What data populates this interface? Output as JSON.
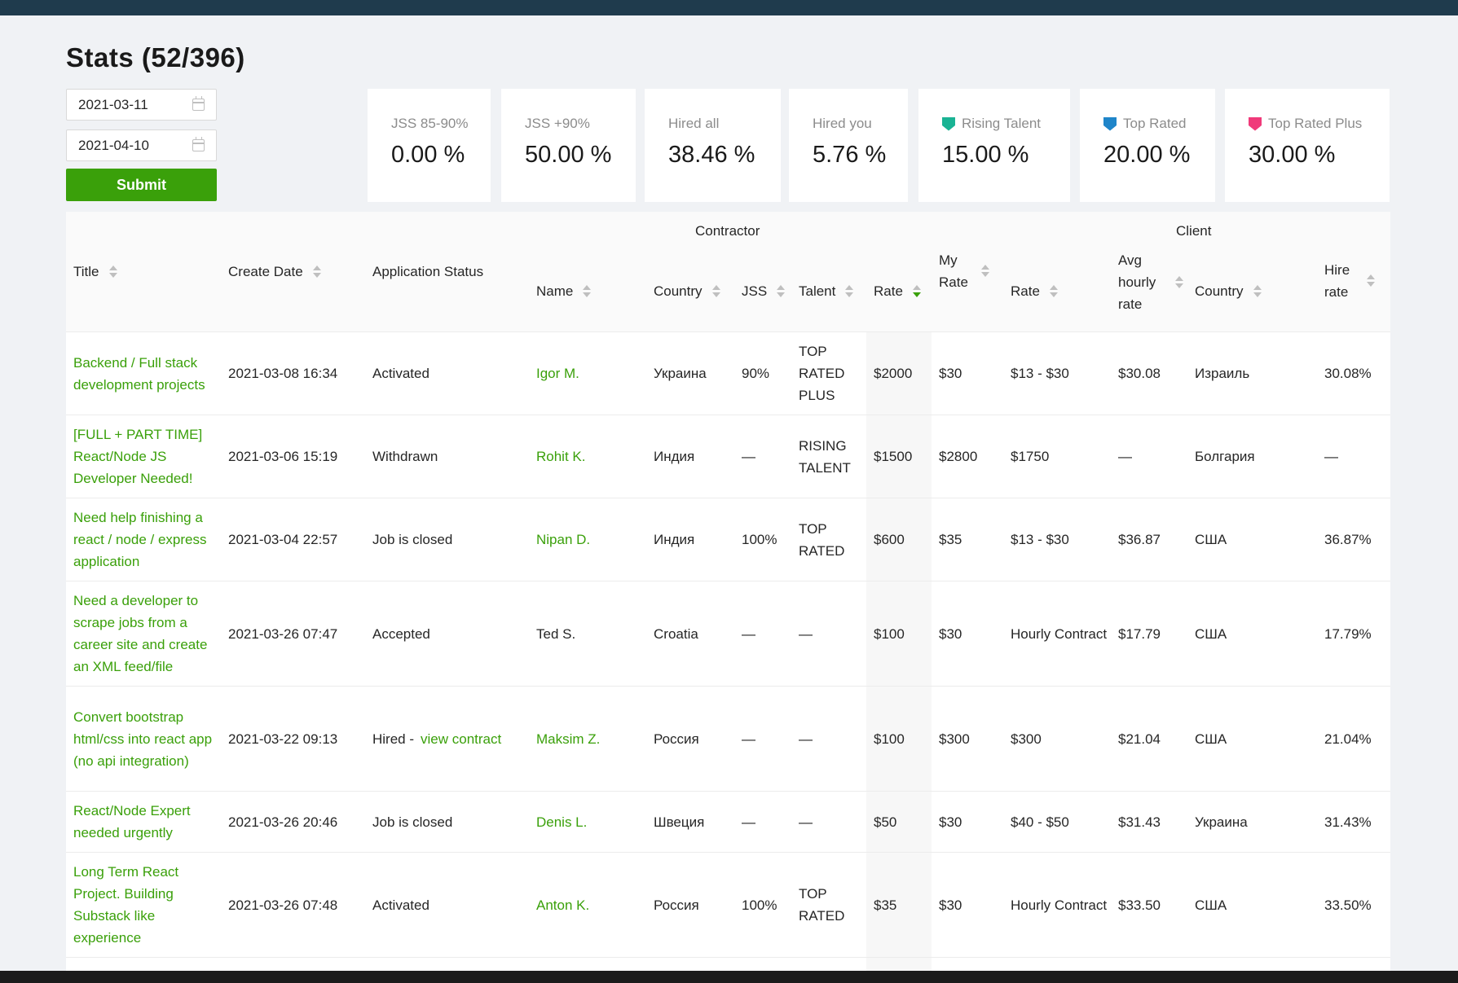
{
  "page": {
    "title": "Stats (52/396)"
  },
  "filters": {
    "date_from": "2021-03-11",
    "date_to": "2021-04-10",
    "submit_label": "Submit"
  },
  "stats": [
    {
      "label": "JSS 85-90%",
      "value": "0.00 %",
      "badge": null
    },
    {
      "label": "JSS +90%",
      "value": "50.00 %",
      "badge": null
    },
    {
      "label": "Hired all",
      "value": "38.46 %",
      "badge": null
    },
    {
      "label": "Hired you",
      "value": "5.76 %",
      "badge": null
    },
    {
      "label": "Rising Talent",
      "value": "15.00 %",
      "badge": "#1ab394"
    },
    {
      "label": "Top Rated",
      "value": "20.00 %",
      "badge": "#1f85c9"
    },
    {
      "label": "Top Rated Plus",
      "value": "30.00 %",
      "badge": "#f03a7a"
    }
  ],
  "table": {
    "group_contractor": "Contractor",
    "group_client": "Client",
    "headers": {
      "title": "Title",
      "create_date": "Create Date",
      "application_status": "Application Status",
      "name": "Name",
      "country": "Country",
      "jss": "JSS",
      "talent": "Talent",
      "rate": "Rate",
      "my_rate": "My Rate",
      "client_rate": "Rate",
      "avg_hourly_rate": "Avg hourly rate",
      "client_country": "Country",
      "hire_rate": "Hire rate"
    },
    "rows": [
      {
        "title": "Backend / Full stack development projects",
        "date": "2021-03-08 16:34",
        "status": "Activated",
        "status_link": "",
        "name": "Igor M.",
        "name_link": true,
        "country": "Украина",
        "jss": "90%",
        "talent": "TOP RATED PLUS",
        "rate": "$2000",
        "my_rate": "$30",
        "client_rate": "$13 - $30",
        "avg": "$30.08",
        "client_country": "Израиль",
        "hire_rate": "30.08%"
      },
      {
        "title": "[FULL + PART TIME] React/Node JS Developer Needed!",
        "date": "2021-03-06 15:19",
        "status": "Withdrawn",
        "status_link": "",
        "name": "Rohit K.",
        "name_link": true,
        "country": "Индия",
        "jss": "—",
        "talent": "RISING TALENT",
        "rate": "$1500",
        "my_rate": "$2800",
        "client_rate": "$1750",
        "avg": "—",
        "client_country": "Болгария",
        "hire_rate": "—"
      },
      {
        "title": "Need help finishing a react / node / express application",
        "date": "2021-03-04 22:57",
        "status": "Job is closed",
        "status_link": "",
        "name": "Nipan D.",
        "name_link": true,
        "country": "Индия",
        "jss": "100%",
        "talent": "TOP RATED",
        "rate": "$600",
        "my_rate": "$35",
        "client_rate": "$13 - $30",
        "avg": "$36.87",
        "client_country": "США",
        "hire_rate": "36.87%"
      },
      {
        "title": "Need a developer to scrape jobs from a career site and create an XML feed/file",
        "date": "2021-03-26 07:47",
        "status": "Accepted",
        "status_link": "",
        "name": "Ted S.",
        "name_link": false,
        "country": "Croatia",
        "jss": "—",
        "talent": "—",
        "rate": "$100",
        "my_rate": "$30",
        "client_rate": "Hourly Contract",
        "avg": "$17.79",
        "client_country": "США",
        "hire_rate": "17.79%"
      },
      {
        "title": "Convert bootstrap html/css into react app (no api integration)",
        "date": "2021-03-22 09:13",
        "status": "Hired -",
        "status_link": "view contract",
        "name": "Maksim Z.",
        "name_link": true,
        "country": "Россия",
        "jss": "—",
        "talent": "—",
        "rate": "$100",
        "my_rate": "$300",
        "client_rate": "$300",
        "avg": "$21.04",
        "client_country": "США",
        "hire_rate": "21.04%"
      },
      {
        "title": "React/Node Expert needed urgently",
        "date": "2021-03-26 20:46",
        "status": "Job is closed",
        "status_link": "",
        "name": "Denis L.",
        "name_link": true,
        "country": "Швеция",
        "jss": "—",
        "talent": "—",
        "rate": "$50",
        "my_rate": "$30",
        "client_rate": "$40 - $50",
        "avg": "$31.43",
        "client_country": "Украина",
        "hire_rate": "31.43%"
      },
      {
        "title": "Long Term React Project. Building Substack like experience",
        "date": "2021-03-26 07:48",
        "status": "Activated",
        "status_link": "",
        "name": "Anton K.",
        "name_link": true,
        "country": "Россия",
        "jss": "100%",
        "talent": "TOP RATED",
        "rate": "$35",
        "my_rate": "$30",
        "client_rate": "Hourly Contract",
        "avg": "$33.50",
        "client_country": "США",
        "hire_rate": "33.50%"
      }
    ]
  }
}
